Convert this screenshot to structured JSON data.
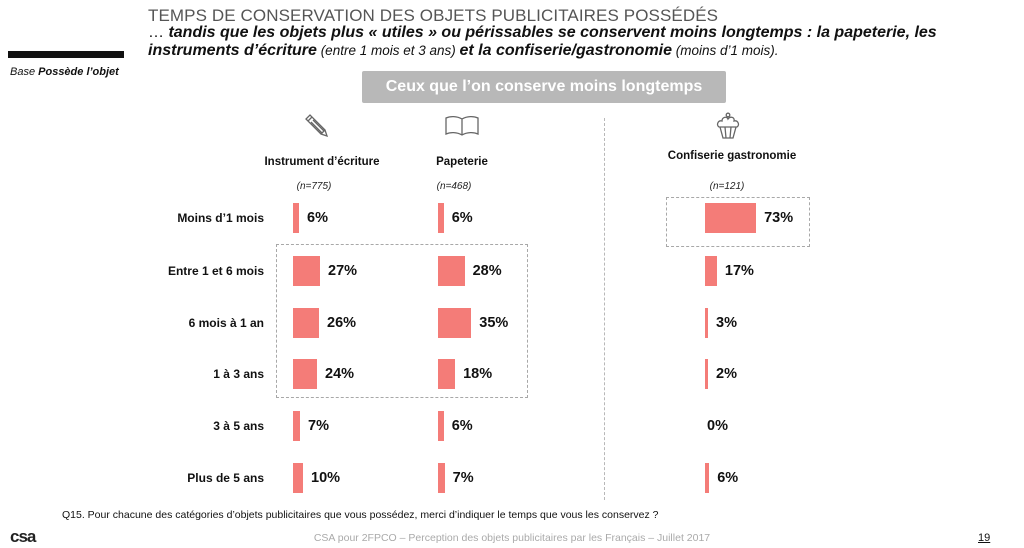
{
  "header": {
    "title": "TEMPS DE CONSERVATION DES OBJETS PUBLICITAIRES POSSÉDÉS",
    "subtitle_prefix": "… ",
    "subtitle_bold_1": "tandis que les objets plus « utiles » ou périssables se conservent moins longtemps : la papeterie, les instruments d’écriture",
    "subtitle_note_1": " (entre 1 mois et 3 ans) ",
    "subtitle_bold_2": "et la confiserie/gastronomie",
    "subtitle_note_2": " (moins d’1 mois)."
  },
  "base": {
    "prefix": "Base ",
    "value": "Possède l’objet"
  },
  "banner": "Ceux que l’on conserve moins longtemps",
  "icons": [
    "pencil-icon",
    "book-icon",
    "cupcake-icon"
  ],
  "colors": {
    "bar": "#f47c78",
    "banner": "#b8b8b8"
  },
  "chart_data": {
    "type": "bar",
    "orientation": "horizontal",
    "title": "Ceux que l’on conserve moins longtemps",
    "categories": [
      "Moins d’1 mois",
      "Entre 1 et 6 mois",
      "6 mois à 1 an",
      "1 à 3 ans",
      "3 à 5 ans",
      "Plus de 5 ans"
    ],
    "series": [
      {
        "name": "Instrument d’écriture",
        "n": "(n=775)",
        "values": [
          6,
          27,
          26,
          24,
          7,
          10
        ]
      },
      {
        "name": "Papeterie",
        "n": "(n=468)",
        "values": [
          6,
          28,
          35,
          18,
          6,
          7
        ]
      },
      {
        "name": "Confiserie gastronomie",
        "n": "(n=121)",
        "values": [
          73,
          17,
          3,
          2,
          0,
          6
        ]
      }
    ],
    "unit": "%",
    "highlights": [
      {
        "series": [
          0,
          1
        ],
        "categories": [
          1,
          2,
          3
        ]
      },
      {
        "series": [
          2
        ],
        "categories": [
          0
        ]
      }
    ]
  },
  "question": "Q15. Pour chacune des catégories d’objets publicitaires que vous possédez, merci d’indiquer le temps que vous les conservez ?",
  "footer": "CSA pour 2FPCO – Perception des objets publicitaires par les Français – Juillet 2017",
  "page_number": "19",
  "logo": "csa"
}
